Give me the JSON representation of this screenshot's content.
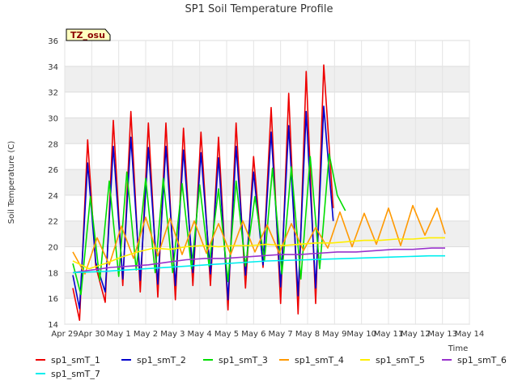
{
  "chart_data": {
    "type": "line",
    "title": "SP1 Soil Temperature Profile",
    "xlabel": "Time",
    "ylabel": "Soil Temperature (C)",
    "ylim": [
      14,
      36
    ],
    "yticks": [
      14,
      16,
      18,
      20,
      22,
      24,
      26,
      28,
      30,
      32,
      34,
      36
    ],
    "xlim": [
      0,
      15
    ],
    "x_tick_labels": [
      "Apr 29",
      "Apr 30",
      "May 1",
      "May 2",
      "May 3",
      "May 4",
      "May 5",
      "May 6",
      "May 7",
      "May 8",
      "May 9",
      "May 10",
      "May 11",
      "May 12",
      "May 13",
      "May 14"
    ],
    "badge": "TZ_osu",
    "grid": true,
    "series": [
      {
        "name": "sp1_smT_1",
        "color": "#ee0000",
        "x": [
          0.3,
          0.55,
          0.85,
          1.15,
          1.5,
          1.8,
          2.15,
          2.45,
          2.8,
          3.1,
          3.45,
          3.75,
          4.1,
          4.4,
          4.75,
          5.05,
          5.4,
          5.7,
          6.05,
          6.35,
          6.7,
          7.0,
          7.35,
          7.65,
          8.0,
          8.3,
          8.65,
          8.95,
          9.3,
          9.6,
          9.95,
          10.25,
          10.6,
          10.9,
          11.25,
          11.55,
          11.9,
          12.2,
          12.55,
          12.85,
          13.2,
          13.5,
          13.85,
          14.1
        ],
        "values": [
          16.8,
          14.3,
          28.3,
          18.5,
          15.7,
          29.8,
          17.0,
          30.5,
          16.5,
          29.6,
          16.1,
          29.6,
          15.9,
          29.2,
          17.0,
          28.9,
          17.0,
          28.5,
          15.1,
          29.6,
          16.8,
          27.0,
          18.4,
          30.8,
          15.6,
          31.9,
          14.8,
          33.6,
          15.6,
          34.1,
          23.0,
          null,
          null,
          null,
          null,
          null,
          null,
          null,
          null,
          null,
          null,
          null,
          null,
          null
        ]
      },
      {
        "name": "sp1_smT_2",
        "color": "#0000cc",
        "x": [
          0.3,
          0.55,
          0.85,
          1.15,
          1.5,
          1.8,
          2.15,
          2.45,
          2.8,
          3.1,
          3.45,
          3.75,
          4.1,
          4.4,
          4.75,
          5.05,
          5.4,
          5.7,
          6.05,
          6.35,
          6.7,
          7.0,
          7.35,
          7.65,
          8.0,
          8.3,
          8.65,
          8.95,
          9.3,
          9.6,
          9.95,
          10.25,
          10.6,
          10.9,
          11.25,
          11.55,
          11.9,
          12.2,
          12.55,
          12.85,
          13.2,
          13.5,
          13.85,
          14.1
        ],
        "values": [
          17.8,
          15.2,
          26.5,
          18.8,
          16.5,
          27.8,
          17.5,
          28.5,
          17.4,
          27.7,
          17.1,
          27.8,
          17.0,
          27.5,
          18.0,
          27.3,
          17.9,
          26.9,
          15.9,
          27.8,
          17.8,
          25.8,
          18.6,
          28.9,
          16.9,
          29.4,
          16.2,
          30.5,
          16.8,
          30.9,
          22.0,
          null,
          null,
          null,
          null,
          null,
          null,
          null,
          null,
          null,
          null,
          null,
          null,
          null
        ]
      },
      {
        "name": "sp1_smT_3",
        "color": "#00dd00",
        "x": [
          0.3,
          0.6,
          0.95,
          1.3,
          1.65,
          2.0,
          2.3,
          2.65,
          3.0,
          3.35,
          3.65,
          4.0,
          4.35,
          4.7,
          5.0,
          5.35,
          5.7,
          6.05,
          6.35,
          6.7,
          7.05,
          7.4,
          7.7,
          8.05,
          8.4,
          8.75,
          9.1,
          9.45,
          9.8,
          10.1,
          10.4,
          null,
          null,
          null,
          null,
          null,
          null,
          null,
          null,
          null,
          null,
          null,
          null,
          null
        ],
        "values": [
          18.7,
          16.3,
          23.9,
          17.4,
          25.1,
          17.7,
          25.8,
          18.2,
          25.3,
          18.0,
          25.3,
          18.0,
          24.9,
          18.3,
          24.8,
          18.5,
          24.5,
          17.3,
          25.1,
          18.5,
          23.9,
          18.9,
          26.1,
          17.9,
          26.2,
          17.5,
          27.0,
          18.3,
          27.2,
          24.0,
          22.8,
          null,
          null,
          null,
          null,
          null,
          null,
          null,
          null,
          null,
          null,
          null,
          null,
          null
        ]
      },
      {
        "name": "sp1_smT_4",
        "color": "#ff9900",
        "x": [
          0.3,
          0.75,
          1.2,
          1.65,
          2.1,
          2.55,
          3.0,
          3.45,
          3.9,
          4.35,
          4.8,
          5.25,
          5.7,
          6.15,
          6.6,
          7.05,
          7.5,
          7.95,
          8.4,
          8.85,
          9.3,
          9.75,
          10.2,
          10.65,
          11.1,
          11.55,
          12.0,
          12.45,
          12.9,
          13.35,
          13.8,
          14.1
        ],
        "values": [
          19.6,
          17.9,
          20.7,
          18.6,
          21.6,
          19.1,
          22.3,
          19.3,
          22.2,
          19.4,
          22.0,
          19.5,
          21.8,
          19.4,
          22.0,
          19.6,
          21.7,
          19.5,
          21.8,
          19.7,
          21.5,
          19.9,
          22.7,
          20.0,
          22.6,
          20.2,
          23.0,
          20.1,
          23.2,
          20.9,
          23.0,
          21.0
        ]
      },
      {
        "name": "sp1_smT_5",
        "color": "#ffee00",
        "x": [
          0.3,
          0.9,
          1.5,
          2.1,
          2.7,
          3.3,
          3.9,
          4.5,
          5.1,
          5.7,
          6.3,
          6.9,
          7.5,
          8.1,
          8.7,
          9.3,
          9.9,
          10.5,
          11.1,
          11.7,
          12.3,
          12.9,
          13.5,
          14.1
        ],
        "values": [
          18.9,
          18.3,
          18.7,
          19.2,
          19.6,
          19.9,
          19.8,
          20.0,
          20.1,
          20.0,
          20.1,
          20.1,
          20.2,
          20.1,
          20.2,
          20.3,
          20.3,
          20.4,
          20.5,
          20.5,
          20.6,
          20.6,
          20.7,
          20.7
        ]
      },
      {
        "name": "sp1_smT_6",
        "color": "#9933cc",
        "x": [
          0.3,
          1.0,
          1.7,
          2.4,
          3.1,
          3.8,
          4.5,
          5.2,
          5.9,
          6.6,
          7.3,
          8.0,
          8.7,
          9.4,
          10.1,
          10.8,
          11.5,
          12.2,
          12.9,
          13.6,
          14.1
        ],
        "values": [
          18.0,
          18.2,
          18.4,
          18.5,
          18.6,
          18.8,
          19.0,
          19.1,
          19.1,
          19.2,
          19.3,
          19.4,
          19.4,
          19.5,
          19.6,
          19.6,
          19.7,
          19.8,
          19.8,
          19.9,
          19.9
        ]
      },
      {
        "name": "sp1_smT_7",
        "color": "#00eeee",
        "x": [
          0.3,
          1.5,
          3.0,
          4.5,
          6.0,
          7.5,
          9.0,
          10.5,
          12.0,
          13.5,
          14.1
        ],
        "values": [
          18.0,
          18.1,
          18.3,
          18.5,
          18.7,
          18.9,
          19.0,
          19.1,
          19.2,
          19.3,
          19.3
        ]
      }
    ]
  }
}
